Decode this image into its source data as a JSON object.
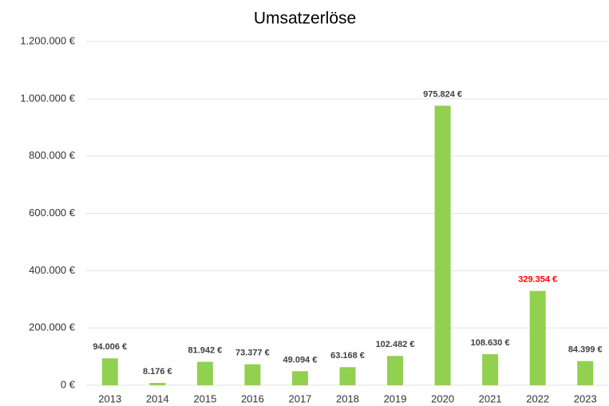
{
  "chart_data": {
    "type": "bar",
    "title": "Umsatzerlöse",
    "categories": [
      "2013",
      "2014",
      "2015",
      "2016",
      "2017",
      "2018",
      "2019",
      "2020",
      "2021",
      "2022",
      "2023"
    ],
    "values": [
      94006,
      8176,
      81942,
      73377,
      49094,
      63168,
      102482,
      975824,
      108630,
      329354,
      84399
    ],
    "value_labels": [
      "94.006 €",
      "8.176 €",
      "81.942 €",
      "73.377 €",
      "49.094 €",
      "63.168 €",
      "102.482 €",
      "975.824 €",
      "108.630 €",
      "329.354 €",
      "84.399 €"
    ],
    "value_label_colors": [
      "#404040",
      "#404040",
      "#404040",
      "#404040",
      "#404040",
      "#404040",
      "#404040",
      "#404040",
      "#404040",
      "#ff0000",
      "#404040"
    ],
    "color": "#92d050",
    "ylim": [
      0,
      1200000
    ],
    "yticks": [
      {
        "value": 0,
        "label": "0 €"
      },
      {
        "value": 200000,
        "label": "200.000 €"
      },
      {
        "value": 400000,
        "label": "400.000 €"
      },
      {
        "value": 600000,
        "label": "600.000 €"
      },
      {
        "value": 800000,
        "label": "800.000 €"
      },
      {
        "value": 1000000,
        "label": "1.000.000 €"
      },
      {
        "value": 1200000,
        "label": "1.200.000 €"
      }
    ],
    "grid": true
  }
}
